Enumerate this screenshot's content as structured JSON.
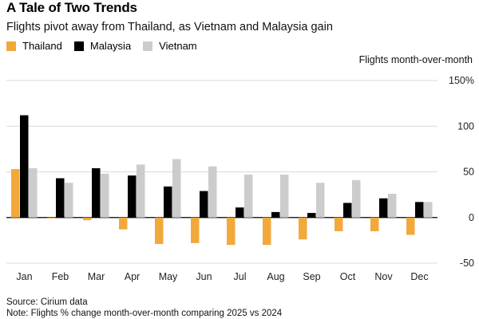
{
  "chart_data": {
    "type": "bar",
    "title": "A Tale of Two Trends",
    "subtitle": "Flights pivot away from Thailand, as Vietnam and Malaysia gain",
    "ylabel": "Flights month-over-month",
    "xlabel": "",
    "ylim": [
      -50,
      150
    ],
    "yticks": [
      -50,
      0,
      50,
      100,
      150
    ],
    "ytick_labels": [
      "-50",
      "0",
      "50",
      "100",
      "150%"
    ],
    "categories": [
      "Jan",
      "Feb",
      "Mar",
      "Apr",
      "May",
      "Jun",
      "Jul",
      "Aug",
      "Sep",
      "Oct",
      "Nov",
      "Dec"
    ],
    "series": [
      {
        "name": "Thailand",
        "color": "#f2a93b",
        "values": [
          53,
          -1,
          -3,
          -13,
          -29,
          -28,
          -30,
          -30,
          -24,
          -15,
          -15,
          -19
        ]
      },
      {
        "name": "Malaysia",
        "color": "#000000",
        "values": [
          112,
          43,
          54,
          46,
          34,
          29,
          11,
          6,
          5,
          16,
          21,
          17
        ]
      },
      {
        "name": "Vietnam",
        "color": "#cccccc",
        "values": [
          54,
          38,
          48,
          58,
          64,
          56,
          47,
          47,
          38,
          41,
          26,
          17
        ]
      }
    ],
    "grid": true,
    "legend_position": "top-left"
  },
  "footer": {
    "source": "Source: Cirium data",
    "note": "Note: Flights % change month-over-month comparing 2025 vs 2024"
  }
}
